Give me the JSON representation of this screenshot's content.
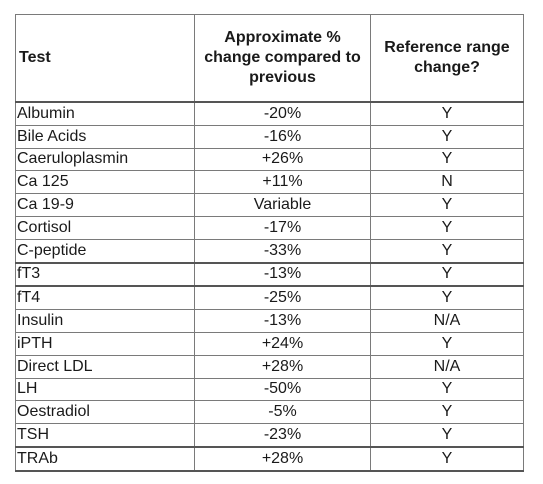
{
  "table": {
    "headers": {
      "test": "Test",
      "change": "Approximate % change compared to previous",
      "ref": "Reference range change?"
    },
    "rows": [
      {
        "test": "Albumin",
        "change": "-20%",
        "ref": "Y"
      },
      {
        "test": "Bile Acids",
        "change": "-16%",
        "ref": "Y"
      },
      {
        "test": "Caeruloplasmin",
        "change": "+26%",
        "ref": "Y"
      },
      {
        "test": "Ca 125",
        "change": "+11%",
        "ref": "N"
      },
      {
        "test": "Ca 19-9",
        "change": "Variable",
        "ref": "Y"
      },
      {
        "test": "Cortisol",
        "change": "-17%",
        "ref": "Y"
      },
      {
        "test": "C-peptide",
        "change": "-33%",
        "ref": "Y"
      },
      {
        "test": "fT3",
        "change": "-13%",
        "ref": "Y"
      },
      {
        "test": "fT4",
        "change": "-25%",
        "ref": "Y"
      },
      {
        "test": "Insulin",
        "change": "-13%",
        "ref": "N/A"
      },
      {
        "test": "iPTH",
        "change": "+24%",
        "ref": "Y"
      },
      {
        "test": "Direct LDL",
        "change": "+28%",
        "ref": "N/A"
      },
      {
        "test": "LH",
        "change": "-50%",
        "ref": "Y"
      },
      {
        "test": "Oestradiol",
        "change": "-5%",
        "ref": "Y"
      },
      {
        "test": "TSH",
        "change": "-23%",
        "ref": "Y"
      },
      {
        "test": "TRAb",
        "change": "+28%",
        "ref": "Y"
      }
    ]
  }
}
